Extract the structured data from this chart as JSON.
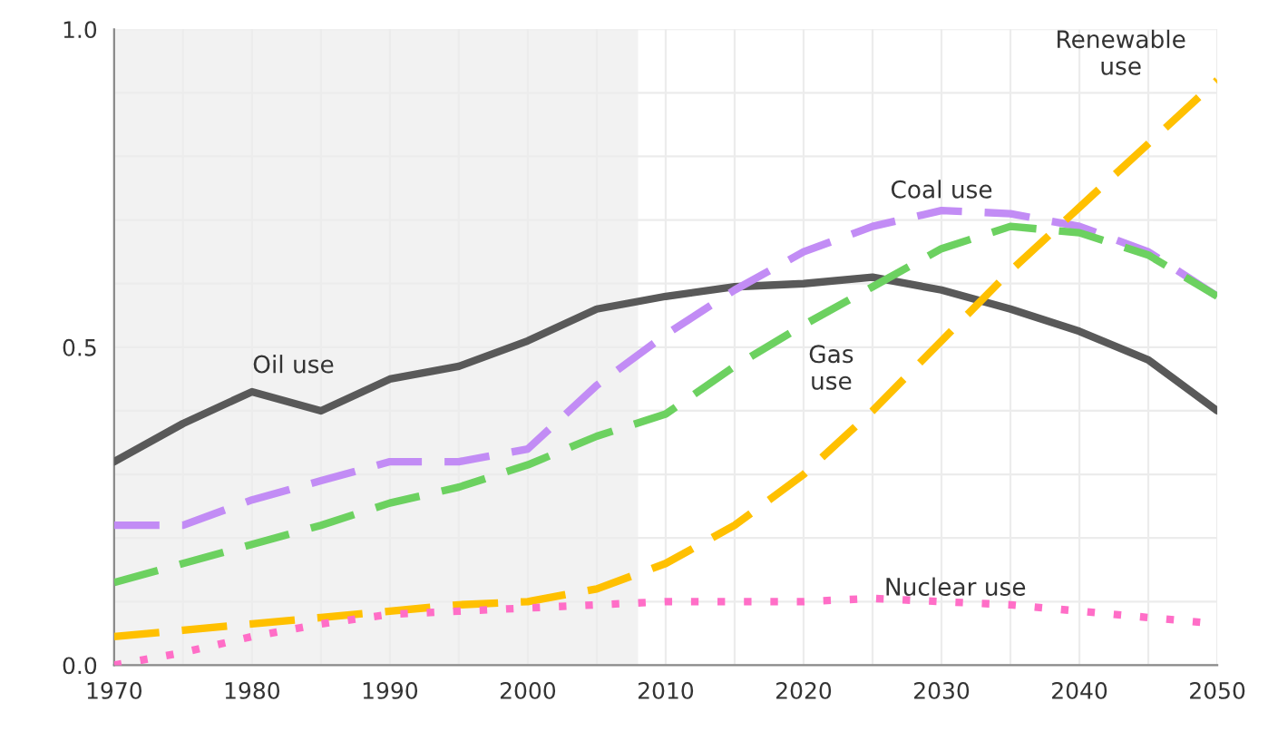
{
  "chart_data": {
    "type": "line",
    "x": [
      1970,
      1975,
      1980,
      1985,
      1990,
      1995,
      2000,
      2005,
      2010,
      2015,
      2020,
      2025,
      2030,
      2035,
      2040,
      2045,
      2050
    ],
    "series": [
      {
        "name": "Oil use",
        "color": "#595959",
        "line_style": "solid",
        "values": [
          0.32,
          0.38,
          0.43,
          0.4,
          0.45,
          0.47,
          0.51,
          0.56,
          0.58,
          0.595,
          0.6,
          0.61,
          0.59,
          0.56,
          0.525,
          0.48,
          0.4
        ]
      },
      {
        "name": "Coal use",
        "color": "#c28cf5",
        "line_style": "dashed",
        "values": [
          0.22,
          0.22,
          0.26,
          0.29,
          0.32,
          0.32,
          0.34,
          0.44,
          0.52,
          0.59,
          0.65,
          0.69,
          0.715,
          0.71,
          0.69,
          0.65,
          0.58
        ]
      },
      {
        "name": "Gas\nuse",
        "color": "#6cd160",
        "line_style": "dashed",
        "values": [
          0.13,
          0.16,
          0.19,
          0.22,
          0.255,
          0.28,
          0.315,
          0.36,
          0.395,
          0.47,
          0.535,
          0.595,
          0.655,
          0.69,
          0.68,
          0.645,
          0.58
        ]
      },
      {
        "name": "Renewable\nuse",
        "color": "#ffc000",
        "line_style": "dashed",
        "values": [
          0.045,
          0.055,
          0.065,
          0.075,
          0.085,
          0.095,
          0.1,
          0.12,
          0.16,
          0.22,
          0.3,
          0.4,
          0.51,
          0.62,
          0.72,
          0.82,
          0.92
        ]
      },
      {
        "name": "Nuclear use",
        "color": "#ff6ec7",
        "line_style": "dotted",
        "values": [
          0.0,
          0.02,
          0.045,
          0.065,
          0.08,
          0.085,
          0.09,
          0.095,
          0.1,
          0.1,
          0.1,
          0.105,
          0.1,
          0.095,
          0.085,
          0.075,
          0.065
        ]
      }
    ],
    "bands": [
      {
        "axis": "x",
        "from": 1970,
        "to": 2008,
        "color": "#f2f2f2"
      }
    ],
    "xlim": [
      1970,
      2050
    ],
    "ylim": [
      0,
      1.0
    ],
    "xticks": [
      1970,
      {
        "value": 1975,
        "label": null
      },
      1980,
      {
        "value": 1985,
        "label": null
      },
      1990,
      {
        "value": 1995,
        "label": null
      },
      2000,
      {
        "value": 2005,
        "label": null
      },
      2010,
      {
        "value": 2015,
        "label": null
      },
      2020,
      {
        "value": 2025,
        "label": null
      },
      2030,
      {
        "value": 2035,
        "label": null
      },
      2040,
      {
        "value": 2045,
        "label": null
      },
      2050
    ],
    "yticks": [
      {
        "value": 0,
        "label": "0.0"
      },
      {
        "value": 0.1,
        "label": null
      },
      {
        "value": 0.2,
        "label": null
      },
      {
        "value": 0.3,
        "label": null
      },
      {
        "value": 0.4,
        "label": null
      },
      {
        "value": 0.5,
        "label": "0.5"
      },
      {
        "value": 0.6,
        "label": null
      },
      {
        "value": 0.7,
        "label": null
      },
      {
        "value": 0.8,
        "label": null
      },
      {
        "value": 0.9,
        "label": null
      },
      {
        "value": 1.0,
        "label": "1.0"
      }
    ],
    "grid": true,
    "marker": "none",
    "legend": false
  }
}
